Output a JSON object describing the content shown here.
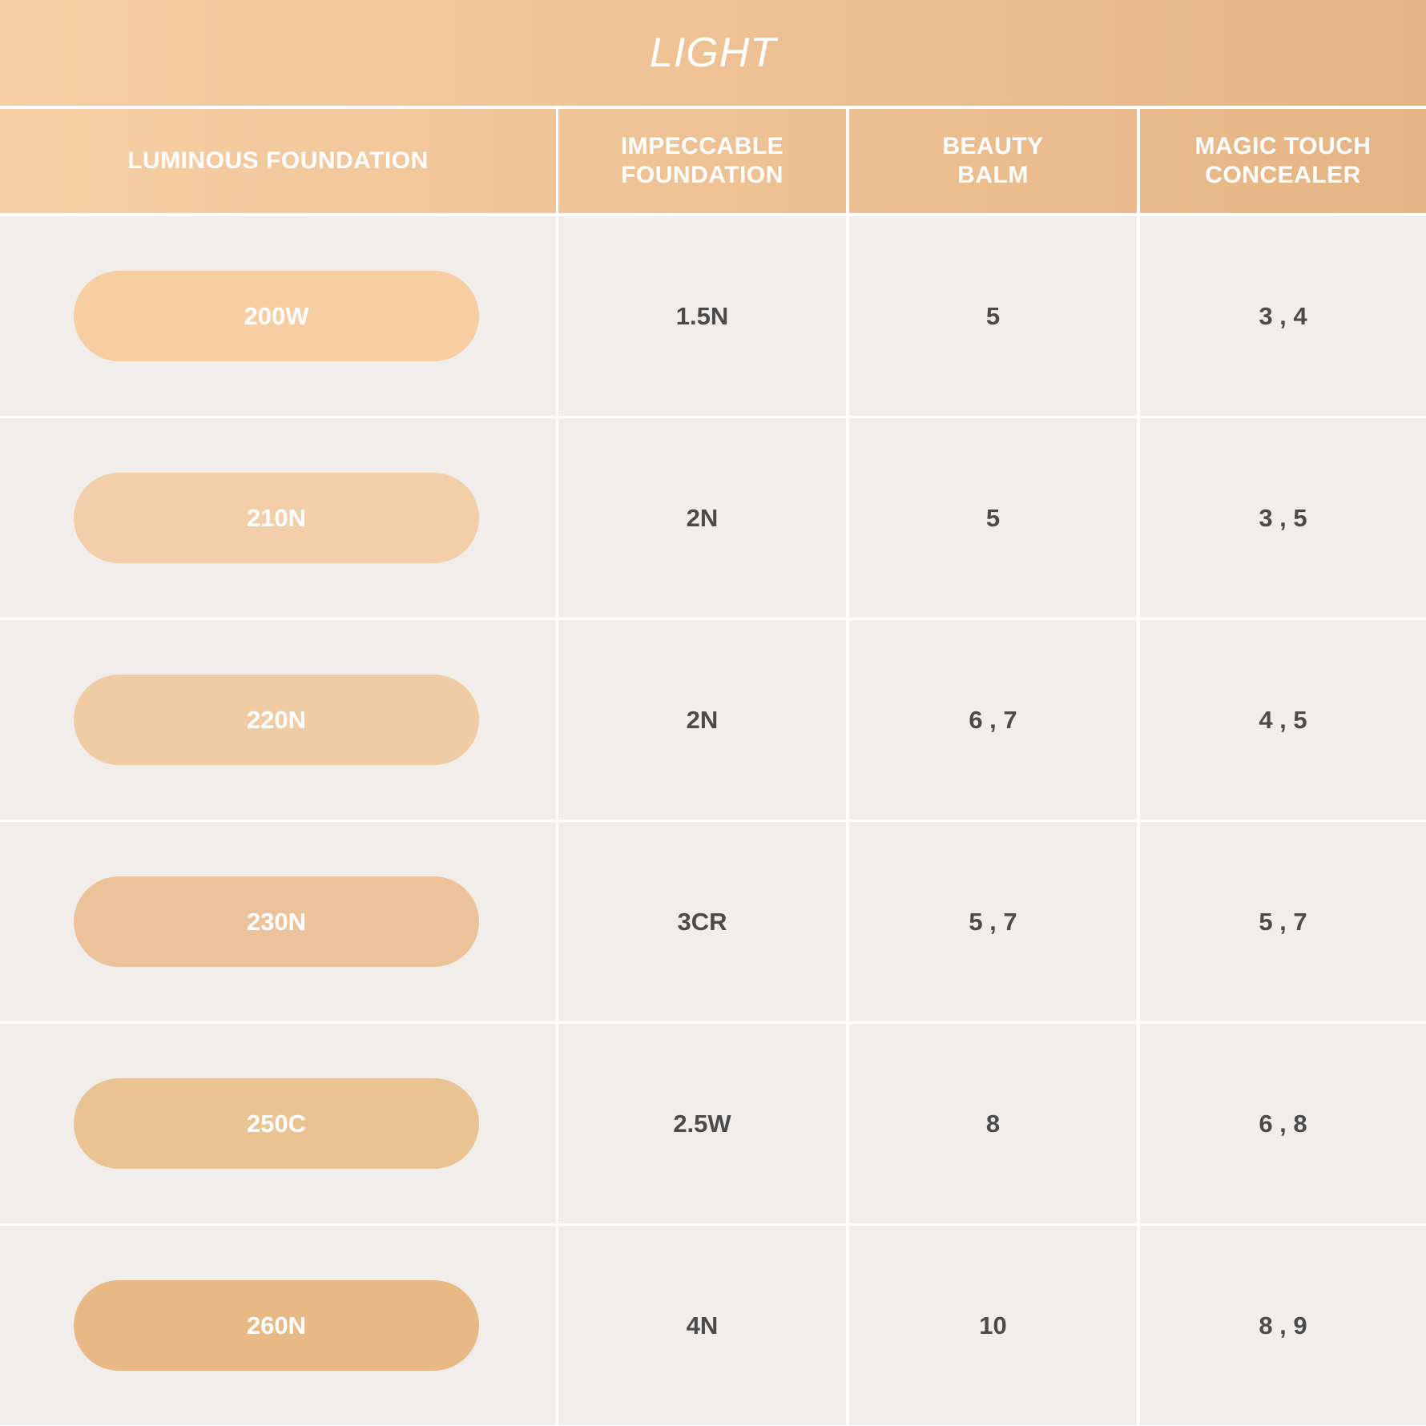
{
  "title": "LIGHT",
  "headers": [
    "LUMINOUS FOUNDATION",
    "IMPECCABLE\nFOUNDATION",
    "BEAUTY\nBALM",
    "MAGIC TOUCH\nCONCEALER"
  ],
  "colors": {
    "header_gradient_start": "#f6cfa4",
    "header_gradient_end": "#e6b585",
    "cell_background": "#f0edeb",
    "value_text": "#4a4a4a"
  },
  "rows": [
    {
      "shade": "200W",
      "swatch": "#f7cda2",
      "impeccable": "1.5N",
      "beauty_balm": "5",
      "concealer": "3 , 4"
    },
    {
      "shade": "210N",
      "swatch": "#f2cfa8",
      "impeccable": "2N",
      "beauty_balm": "5",
      "concealer": "3 , 5"
    },
    {
      "shade": "220N",
      "swatch": "#f0cca5",
      "impeccable": "2N",
      "beauty_balm": "6 , 7",
      "concealer": "4 , 5"
    },
    {
      "shade": "230N",
      "swatch": "#ecc29a",
      "impeccable": "3CR",
      "beauty_balm": "5 , 7",
      "concealer": "5 , 7"
    },
    {
      "shade": "250C",
      "swatch": "#eac392",
      "impeccable": "2.5W",
      "beauty_balm": "8",
      "concealer": "6 , 8"
    },
    {
      "shade": "260N",
      "swatch": "#e8b985",
      "impeccable": "4N",
      "beauty_balm": "10",
      "concealer": "8 , 9"
    }
  ]
}
